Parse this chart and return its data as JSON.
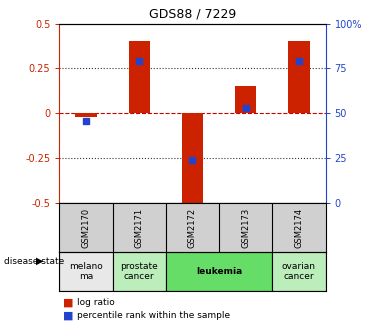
{
  "title": "GDS88 / 7229",
  "samples": [
    "GSM2170",
    "GSM2171",
    "GSM2172",
    "GSM2173",
    "GSM2174"
  ],
  "log_ratio": [
    -0.02,
    0.4,
    -0.52,
    0.15,
    0.4
  ],
  "percentile_rank": [
    46,
    79,
    24,
    53,
    79
  ],
  "ylim_left": [
    -0.5,
    0.5
  ],
  "ylim_right": [
    0,
    100
  ],
  "bar_color": "#cc2200",
  "dot_color": "#2244cc",
  "disease_states": [
    {
      "label": "melano\nma",
      "start": 0,
      "end": 1,
      "color": "#e8e8e8"
    },
    {
      "label": "prostate\ncancer",
      "start": 1,
      "end": 2,
      "color": "#bbeebb"
    },
    {
      "label": "leukemia",
      "start": 2,
      "end": 4,
      "color": "#66dd66"
    },
    {
      "label": "ovarian\ncancer",
      "start": 4,
      "end": 5,
      "color": "#bbeebb"
    }
  ],
  "legend_log_ratio": "log ratio",
  "legend_percentile": "percentile rank within the sample",
  "left_yticks": [
    -0.5,
    -0.25,
    0,
    0.25,
    0.5
  ],
  "right_yticks": [
    0,
    25,
    50,
    75,
    100
  ],
  "hline_color_zero": "#cc0000",
  "hline_color_dotted": "#333333",
  "right_yaxis_color": "#2244cc",
  "left_yaxis_color": "#cc2200",
  "sample_box_color": "#d0d0d0",
  "bar_width": 0.4
}
